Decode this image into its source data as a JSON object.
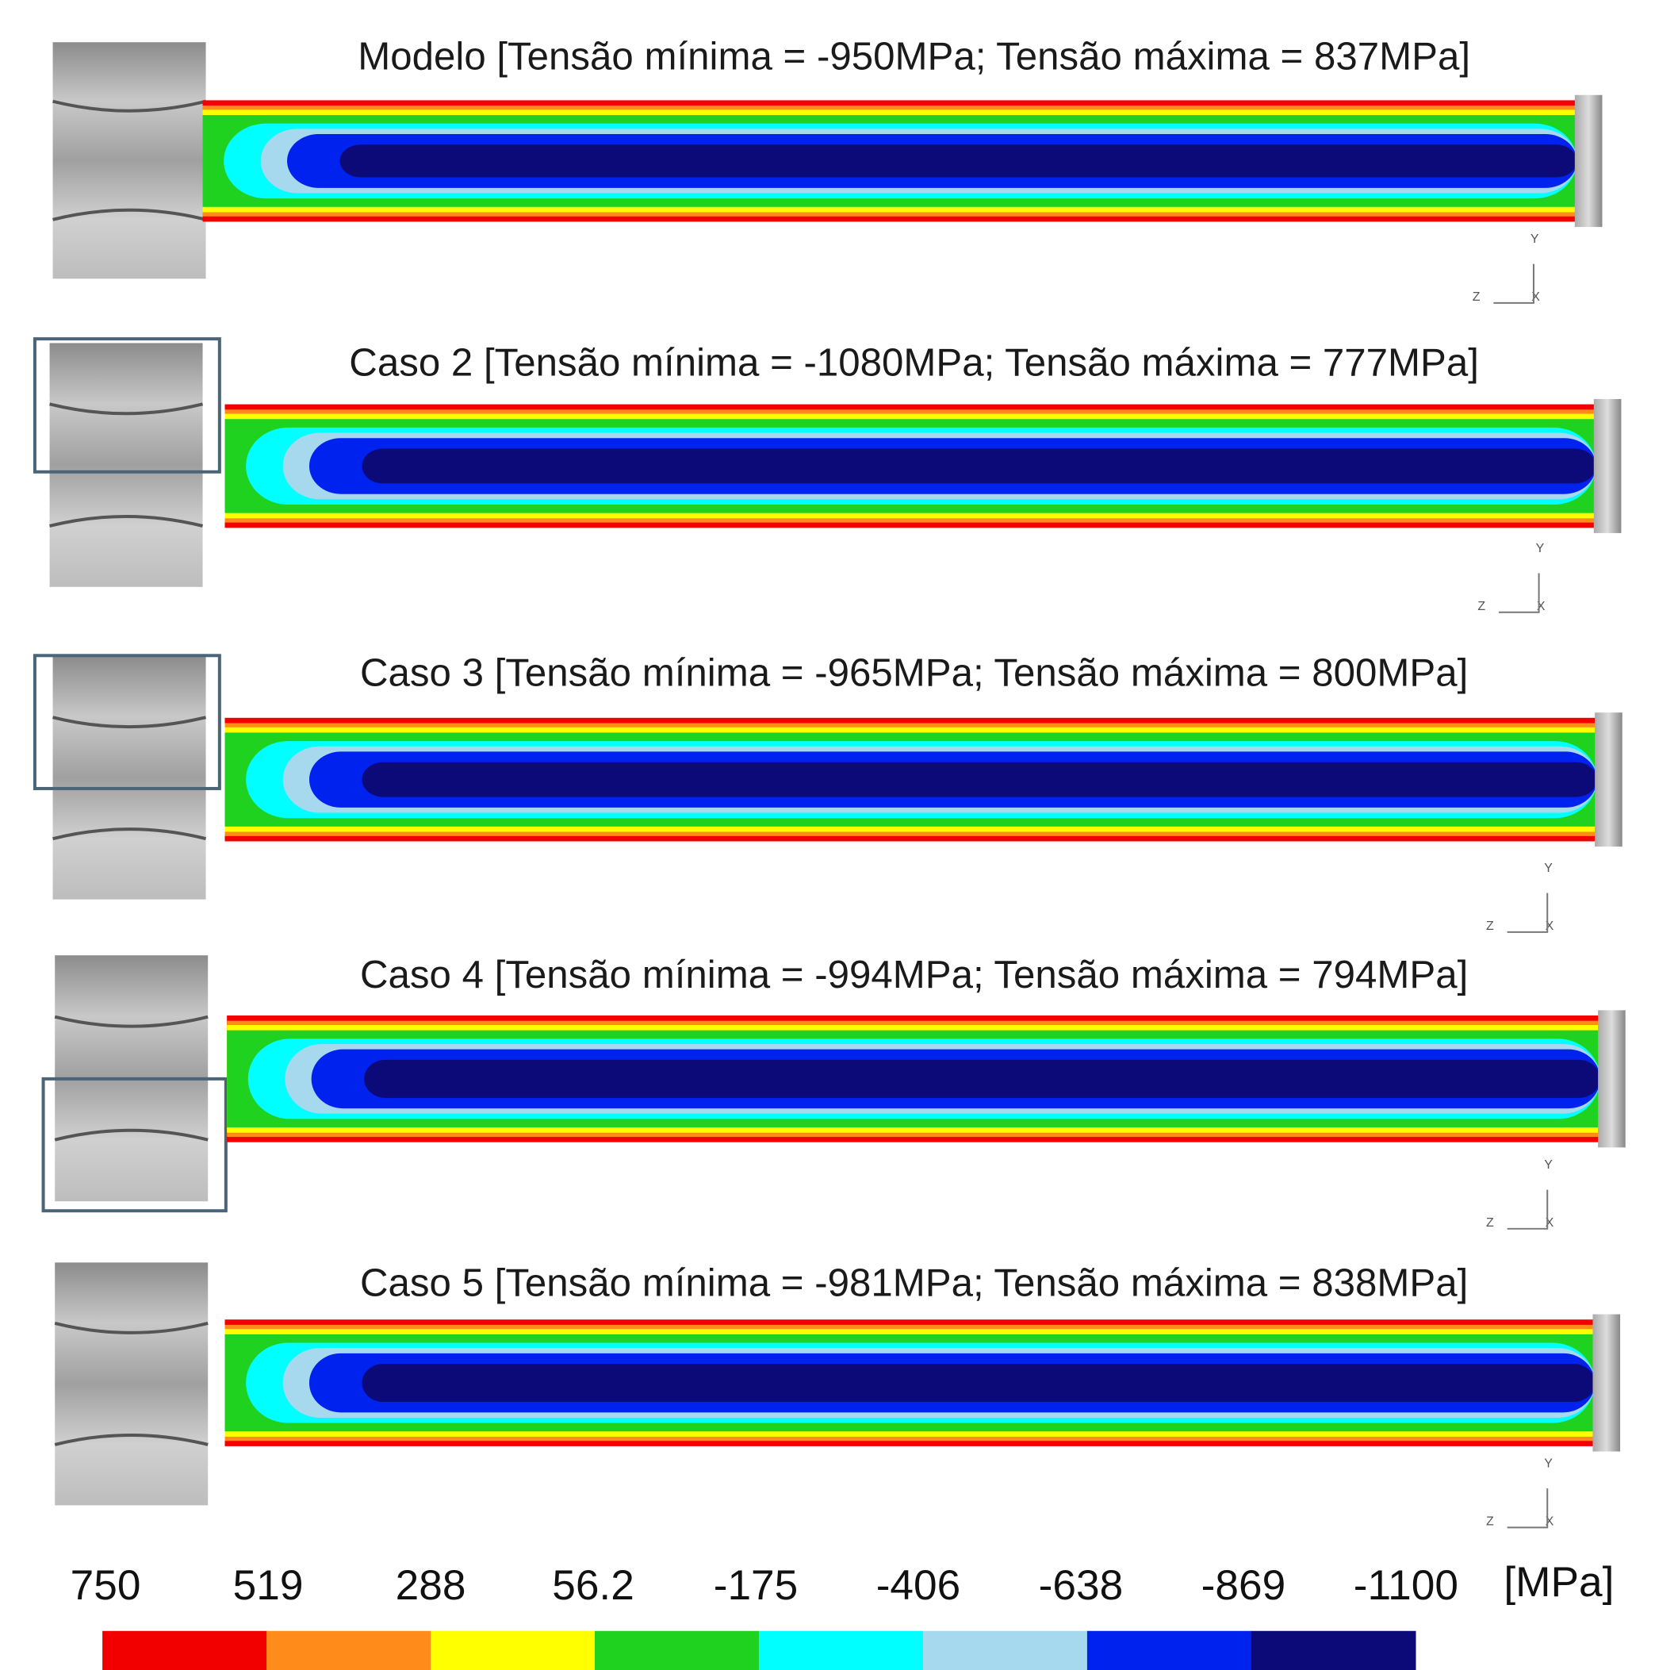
{
  "panels": [
    {
      "title": "Modelo [Tensão mínima = -950MPa; Tensão máxima = 837MPa]"
    },
    {
      "title": "Caso 2 [Tensão mínima = -1080MPa; Tensão máxima = 777MPa]"
    },
    {
      "title": "Caso 3 [Tensão mínima = -965MPa; Tensão máxima = 800MPa]"
    },
    {
      "title": "Caso 4 [Tensão mínima = -994MPa; Tensão máxima = 794MPa]"
    },
    {
      "title": "Caso 5 [Tensão mínima = -981MPa; Tensão máxima = 838MPa]"
    }
  ],
  "axis_triad": {
    "y": "Y",
    "z": "Z",
    "x": "X"
  },
  "legend": {
    "ticks": [
      750,
      519,
      288,
      56.2,
      -175,
      -406,
      -638,
      -869,
      -1100
    ],
    "unit": "[MPa]",
    "colors": [
      "#f20000",
      "#ff8c1a",
      "#ffff00",
      "#1fd21f",
      "#00ffff",
      "#a6d8ee",
      "#0022ee",
      "#0c0a78"
    ]
  }
}
